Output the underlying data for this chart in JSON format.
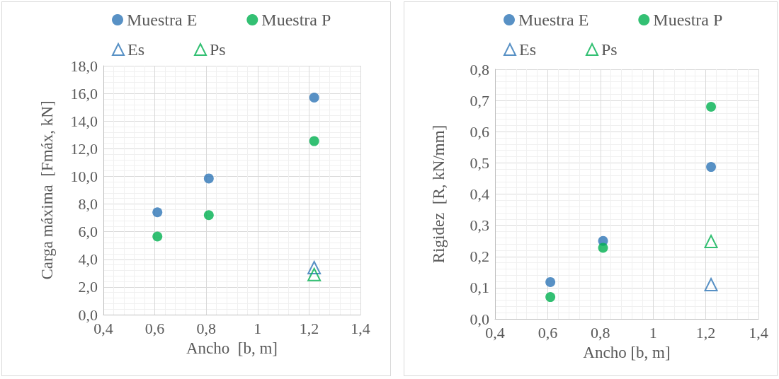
{
  "chart_data": [
    {
      "type": "scatter",
      "xlabel": "Ancho  [b, m]",
      "ylabel": "Carga máxima  [Fmáx, kN]",
      "xlim": [
        0.4,
        1.4
      ],
      "ylim": [
        0,
        18
      ],
      "xticks": [
        {
          "value": 0.4,
          "label": "0,4"
        },
        {
          "value": 0.6,
          "label": "0,6"
        },
        {
          "value": 0.8,
          "label": "0,8"
        },
        {
          "value": 1,
          "label": "1"
        },
        {
          "value": 1.2,
          "label": "1,2"
        },
        {
          "value": 1.4,
          "label": "1,4"
        }
      ],
      "yticks": [
        {
          "value": 0,
          "label": "0,0"
        },
        {
          "value": 2,
          "label": "2,0"
        },
        {
          "value": 4,
          "label": "4,0"
        },
        {
          "value": 6,
          "label": "6,0"
        },
        {
          "value": 8,
          "label": "8,0"
        },
        {
          "value": 10,
          "label": "10,0"
        },
        {
          "value": 12,
          "label": "12,0"
        },
        {
          "value": 14,
          "label": "14,0"
        },
        {
          "value": 16,
          "label": "16,0"
        },
        {
          "value": 18,
          "label": "18,0"
        }
      ],
      "grid": true,
      "legend": "top",
      "series": [
        {
          "name": "Muestra E",
          "color": "#2e75b6",
          "marker": "circle",
          "x": [
            0.61,
            0.81,
            1.22
          ],
          "values": [
            7.4,
            9.85,
            15.7
          ]
        },
        {
          "name": "Muestra P",
          "color": "#00b050",
          "marker": "circle",
          "x": [
            0.61,
            0.81,
            1.22
          ],
          "values": [
            5.65,
            7.2,
            12.55
          ]
        },
        {
          "name": "Es",
          "color": "#2e75b6",
          "marker": "triangle",
          "x": [
            1.22
          ],
          "values": [
            3.4
          ]
        },
        {
          "name": "Ps",
          "color": "#00b050",
          "marker": "triangle",
          "x": [
            1.22
          ],
          "values": [
            2.9
          ]
        }
      ]
    },
    {
      "type": "scatter",
      "xlabel": "Ancho [b, m]",
      "ylabel": "Rigidez  [R, kN/mm]",
      "xlim": [
        0.4,
        1.4
      ],
      "ylim": [
        0,
        0.8
      ],
      "xticks": [
        {
          "value": 0.4,
          "label": "0,4"
        },
        {
          "value": 0.6,
          "label": "0,6"
        },
        {
          "value": 0.8,
          "label": "0,8"
        },
        {
          "value": 1,
          "label": "1"
        },
        {
          "value": 1.2,
          "label": "1,2"
        },
        {
          "value": 1.4,
          "label": "1,4"
        }
      ],
      "yticks": [
        {
          "value": 0,
          "label": "0,0"
        },
        {
          "value": 0.1,
          "label": "0,1"
        },
        {
          "value": 0.2,
          "label": "0,2"
        },
        {
          "value": 0.3,
          "label": "0,3"
        },
        {
          "value": 0.4,
          "label": "0,4"
        },
        {
          "value": 0.5,
          "label": "0,5"
        },
        {
          "value": 0.6,
          "label": "0,6"
        },
        {
          "value": 0.7,
          "label": "0,7"
        },
        {
          "value": 0.8,
          "label": "0,8"
        }
      ],
      "grid": true,
      "legend": "top",
      "series": [
        {
          "name": "Muestra E",
          "color": "#2e75b6",
          "marker": "circle",
          "x": [
            0.61,
            0.81,
            1.22
          ],
          "values": [
            0.118,
            0.25,
            0.487
          ]
        },
        {
          "name": "Muestra P",
          "color": "#00b050",
          "marker": "circle",
          "x": [
            0.61,
            0.81,
            1.22
          ],
          "values": [
            0.07,
            0.228,
            0.68
          ]
        },
        {
          "name": "Es",
          "color": "#2e75b6",
          "marker": "triangle",
          "x": [
            1.22
          ],
          "values": [
            0.11
          ]
        },
        {
          "name": "Ps",
          "color": "#00b050",
          "marker": "triangle",
          "x": [
            1.22
          ],
          "values": [
            0.248
          ]
        }
      ]
    }
  ]
}
